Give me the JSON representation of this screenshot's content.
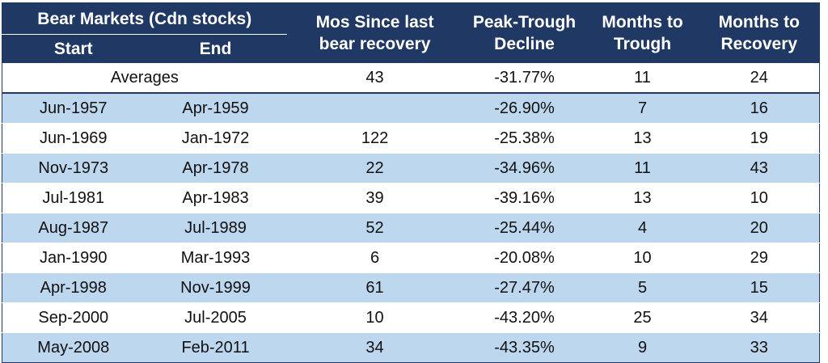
{
  "chart_data": {
    "type": "table",
    "header": {
      "group": "Bear Markets (Cdn stocks)",
      "start": "Start",
      "end": "End",
      "mos_since": [
        "Mos Since last",
        "bear recovery"
      ],
      "decline": [
        "Peak-Trough",
        "Decline"
      ],
      "to_trough": [
        "Months to",
        "Trough"
      ],
      "to_recovery": [
        "Months to",
        "Recovery"
      ]
    },
    "averages": {
      "label": "Averages",
      "mos_since": "43",
      "decline": "-31.77%",
      "to_trough": "11",
      "to_recovery": "24"
    },
    "rows": [
      {
        "start": "Jun-1957",
        "end": "Apr-1959",
        "mos_since": "",
        "decline": "-26.90%",
        "to_trough": "7",
        "to_recovery": "16"
      },
      {
        "start": "Jun-1969",
        "end": "Jan-1972",
        "mos_since": "122",
        "decline": "-25.38%",
        "to_trough": "13",
        "to_recovery": "19"
      },
      {
        "start": "Nov-1973",
        "end": "Apr-1978",
        "mos_since": "22",
        "decline": "-34.96%",
        "to_trough": "11",
        "to_recovery": "43"
      },
      {
        "start": "Jul-1981",
        "end": "Apr-1983",
        "mos_since": "39",
        "decline": "-39.16%",
        "to_trough": "13",
        "to_recovery": "10"
      },
      {
        "start": "Aug-1987",
        "end": "Jul-1989",
        "mos_since": "52",
        "decline": "-25.44%",
        "to_trough": "4",
        "to_recovery": "20"
      },
      {
        "start": "Jan-1990",
        "end": "Mar-1993",
        "mos_since": "6",
        "decline": "-20.08%",
        "to_trough": "10",
        "to_recovery": "29"
      },
      {
        "start": "Apr-1998",
        "end": "Nov-1999",
        "mos_since": "61",
        "decline": "-27.47%",
        "to_trough": "5",
        "to_recovery": "15"
      },
      {
        "start": "Sep-2000",
        "end": "Jul-2005",
        "mos_since": "10",
        "decline": "-43.20%",
        "to_trough": "25",
        "to_recovery": "34"
      },
      {
        "start": "May-2008",
        "end": "Feb-2011",
        "mos_since": "34",
        "decline": "-43.35%",
        "to_trough": "9",
        "to_recovery": "33"
      }
    ],
    "colors": {
      "header_bg": "#1f3864",
      "header_text": "#ffffff",
      "band_odd": "#bdd7ee",
      "band_even": "#ffffff"
    }
  }
}
